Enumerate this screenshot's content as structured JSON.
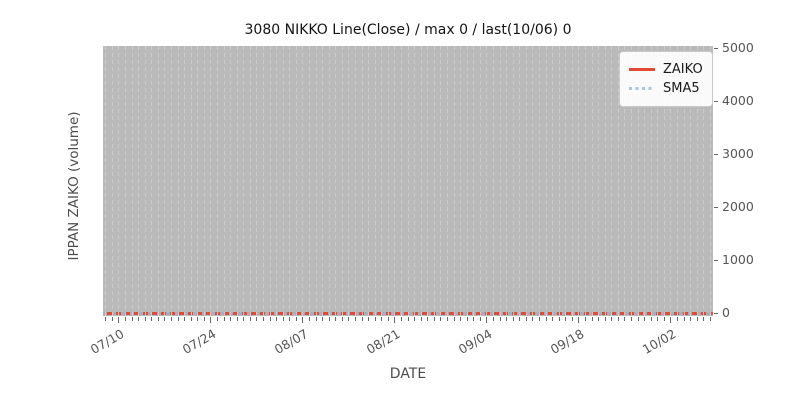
{
  "figure": {
    "title": "3080 NIKKO Line(Close) / max 0 / last(10/06) 0",
    "xlabel": "DATE",
    "ylabel": "IPPAN ZAIKO (volume)"
  },
  "legend": {
    "position": "upper right",
    "items": [
      {
        "label": "ZAIKO",
        "color": "#e24a33",
        "style": "solid"
      },
      {
        "label": "SMA5",
        "color": "#a6c7e0",
        "style": "dotted"
      }
    ]
  },
  "axes": {
    "y_ticks": [
      "0",
      "1000",
      "2000",
      "3000",
      "4000",
      "5000"
    ],
    "y_side": "right",
    "x_major_ticks": [
      "07/10",
      "07/24",
      "08/07",
      "08/21",
      "09/04",
      "09/18",
      "10/02"
    ],
    "x_minor": "daily ticks between majors (majors every 14 days)",
    "grid": "vertical dashed daily gridlines only"
  },
  "colors": {
    "plot_background": "#bababa",
    "gridline": "#cbcbcb",
    "zaiko_line": "#e24a33",
    "sma5_dots": "#a6c7e0",
    "tick_text": "#555555",
    "axis_label_text": "#4d4d4d",
    "title_text": "#141414"
  },
  "chart_data": {
    "type": "line",
    "title": "3080 NIKKO Line(Close) / max 0 / last(10/06) 0",
    "xlabel": "DATE",
    "ylabel": "IPPAN ZAIKO (volume)",
    "x_tick_labels": [
      "07/10",
      "07/24",
      "08/07",
      "08/21",
      "09/04",
      "09/18",
      "10/02"
    ],
    "ylim": [
      0,
      5000
    ],
    "y_tick_values": [
      0,
      1000,
      2000,
      3000,
      4000,
      5000
    ],
    "series": [
      {
        "name": "ZAIKO",
        "style": "solid",
        "color": "#e24a33",
        "value_constant": 0
      },
      {
        "name": "SMA5",
        "style": "dotted",
        "color": "#a6c7e0",
        "value_constant": 0
      }
    ],
    "max_value": 0,
    "last": {
      "date": "10/06",
      "value": 0
    },
    "grid": "vertical-daily-dashed",
    "legend_position": "upper right",
    "legend_entries": [
      "ZAIKO",
      "SMA5"
    ]
  }
}
